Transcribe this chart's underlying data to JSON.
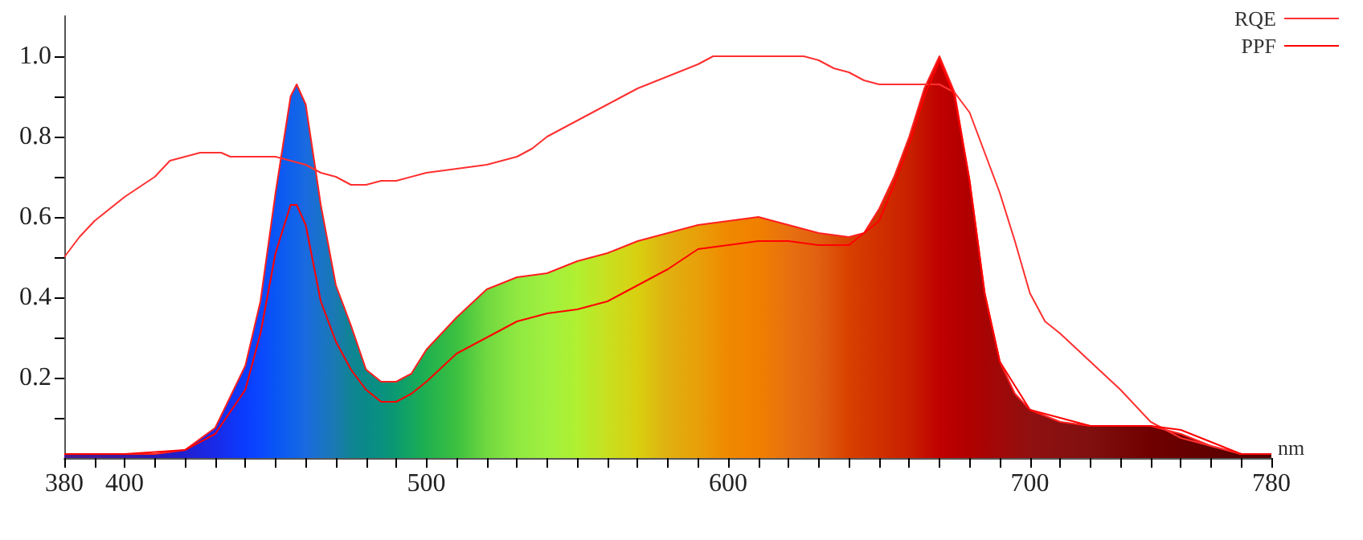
{
  "chart_data": {
    "type": "line",
    "xlabel": "nm",
    "xlim": [
      380,
      780
    ],
    "ylim": [
      0,
      1.1
    ],
    "xticks": [
      380,
      {
        "value": 390,
        "label": null
      },
      400,
      {
        "value": 410,
        "label": null
      },
      {
        "value": 420,
        "label": null
      },
      {
        "value": 430,
        "label": null
      },
      {
        "value": 440,
        "label": null
      },
      {
        "value": 450,
        "label": null
      },
      {
        "value": 460,
        "label": null
      },
      {
        "value": 470,
        "label": null
      },
      {
        "value": 480,
        "label": null
      },
      {
        "value": 490,
        "label": null
      },
      500,
      {
        "value": 510,
        "label": null
      },
      {
        "value": 520,
        "label": null
      },
      {
        "value": 530,
        "label": null
      },
      {
        "value": 540,
        "label": null
      },
      {
        "value": 550,
        "label": null
      },
      {
        "value": 560,
        "label": null
      },
      {
        "value": 570,
        "label": null
      },
      {
        "value": 580,
        "label": null
      },
      {
        "value": 590,
        "label": null
      },
      600,
      {
        "value": 610,
        "label": null
      },
      {
        "value": 620,
        "label": null
      },
      {
        "value": 630,
        "label": null
      },
      {
        "value": 640,
        "label": null
      },
      {
        "value": 650,
        "label": null
      },
      {
        "value": 660,
        "label": null
      },
      {
        "value": 670,
        "label": null
      },
      {
        "value": 680,
        "label": null
      },
      {
        "value": 690,
        "label": null
      },
      700,
      {
        "value": 710,
        "label": null
      },
      {
        "value": 720,
        "label": null
      },
      {
        "value": 730,
        "label": null
      },
      {
        "value": 740,
        "label": null
      },
      {
        "value": 750,
        "label": null
      },
      {
        "value": 760,
        "label": null
      },
      {
        "value": 770,
        "label": null
      },
      780
    ],
    "yticks": [
      {
        "value": 0.1,
        "label": null
      },
      0.2,
      {
        "value": 0.3,
        "label": null
      },
      0.4,
      {
        "value": 0.5,
        "label": null
      },
      0.6,
      {
        "value": 0.7,
        "label": null
      },
      0.8,
      {
        "value": 0.9,
        "label": null
      },
      {
        "value": 1,
        "label": "1.0"
      }
    ],
    "grid": false,
    "legend": "top right",
    "marker": "none",
    "line_style": "solid",
    "series": [
      {
        "type": "area",
        "color": "#ff2020",
        "x": [
          380,
          400,
          410,
          420,
          430,
          440,
          445,
          450,
          455,
          457,
          460,
          465,
          470,
          475,
          480,
          485,
          490,
          495,
          500,
          510,
          520,
          530,
          540,
          550,
          560,
          570,
          580,
          590,
          600,
          610,
          620,
          630,
          640,
          645,
          650,
          655,
          660,
          665,
          670,
          675,
          680,
          685,
          690,
          695,
          700,
          710,
          720,
          730,
          740,
          750,
          760,
          770,
          780
        ],
        "values": [
          0.01,
          0.01,
          0.01,
          0.02,
          0.075,
          0.23,
          0.39,
          0.66,
          0.9,
          0.93,
          0.88,
          0.63,
          0.43,
          0.33,
          0.22,
          0.19,
          0.19,
          0.21,
          0.27,
          0.35,
          0.42,
          0.45,
          0.46,
          0.49,
          0.51,
          0.54,
          0.56,
          0.58,
          0.59,
          0.6,
          0.58,
          0.56,
          0.55,
          0.56,
          0.62,
          0.7,
          0.8,
          0.92,
          1.0,
          0.91,
          0.69,
          0.41,
          0.24,
          0.16,
          0.12,
          0.09,
          0.08,
          0.08,
          0.08,
          0.06,
          0.03,
          0.01,
          0.01
        ],
        "colors": [
          "#4b1a8a",
          "#3a1aa0",
          "#2a1ab8",
          "#2020d0",
          "#1a2ae8",
          "#0a3cff",
          "#0a48ff",
          "#0a55f5",
          "#1060ec",
          "#1264e8",
          "#1a6ae0",
          "#1a72c8",
          "#1a7ab0",
          "#108494",
          "#0a8a88",
          "#0a9080",
          "#0a9a70",
          "#14a660",
          "#20b050",
          "#3cc040",
          "#70d840",
          "#90e840",
          "#a0f040",
          "#b0f030",
          "#c8e020",
          "#d8d010",
          "#e0b010",
          "#e8a008",
          "#f08800",
          "#f08000",
          "#e87010",
          "#e06010",
          "#d84000",
          "#d43800",
          "#d03000",
          "#cc2800",
          "#c82000",
          "#c41000",
          "#c00000",
          "#b80000",
          "#b00000",
          "#a80404",
          "#a00808",
          "#980c0c",
          "#901010",
          "#881010",
          "#801010",
          "#780808",
          "#700000",
          "#680000",
          "#600000",
          "#580000",
          "#500000"
        ]
      },
      {
        "name": "RQE",
        "color": "#ff3030",
        "x": [
          380,
          385,
          390,
          400,
          410,
          415,
          420,
          425,
          432,
          435,
          450,
          455,
          460,
          465,
          470,
          475,
          480,
          485,
          490,
          500,
          510,
          520,
          530,
          535,
          540,
          550,
          560,
          570,
          580,
          590,
          595,
          625,
          630,
          635,
          640,
          645,
          650,
          670,
          675,
          680,
          685,
          690,
          695,
          700,
          705,
          710,
          720,
          730,
          740,
          750,
          760,
          770,
          780
        ],
        "values": [
          0.5,
          0.55,
          0.59,
          0.65,
          0.7,
          0.74,
          0.75,
          0.76,
          0.76,
          0.75,
          0.75,
          0.74,
          0.73,
          0.71,
          0.7,
          0.68,
          0.68,
          0.69,
          0.69,
          0.71,
          0.72,
          0.73,
          0.75,
          0.77,
          0.8,
          0.84,
          0.88,
          0.92,
          0.95,
          0.98,
          1.0,
          1.0,
          0.99,
          0.97,
          0.96,
          0.94,
          0.93,
          0.93,
          0.91,
          0.86,
          0.76,
          0.66,
          0.54,
          0.41,
          0.34,
          0.31,
          0.24,
          0.17,
          0.09,
          0.05,
          0.03,
          0.01,
          0.01
        ]
      },
      {
        "name": "PPF",
        "color": "#ff0000",
        "x": [
          380,
          400,
          420,
          430,
          440,
          445,
          450,
          455,
          457,
          460,
          465,
          470,
          475,
          480,
          485,
          490,
          495,
          500,
          510,
          520,
          530,
          540,
          550,
          560,
          570,
          580,
          590,
          600,
          610,
          620,
          630,
          640,
          650,
          655,
          660,
          665,
          670,
          675,
          680,
          685,
          690,
          700,
          720,
          740,
          750,
          760,
          770,
          780
        ],
        "values": [
          0.01,
          0.01,
          0.02,
          0.06,
          0.17,
          0.31,
          0.51,
          0.63,
          0.63,
          0.58,
          0.39,
          0.29,
          0.22,
          0.17,
          0.14,
          0.14,
          0.16,
          0.19,
          0.26,
          0.3,
          0.34,
          0.36,
          0.37,
          0.39,
          0.43,
          0.47,
          0.52,
          0.53,
          0.54,
          0.54,
          0.53,
          0.53,
          0.59,
          0.68,
          0.78,
          0.9,
          0.99,
          0.9,
          0.69,
          0.41,
          0.24,
          0.12,
          0.08,
          0.08,
          0.07,
          0.04,
          0.01,
          0.01
        ]
      }
    ]
  }
}
